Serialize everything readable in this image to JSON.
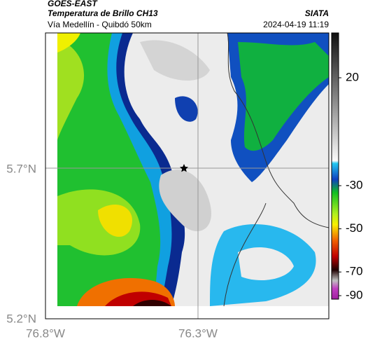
{
  "header": {
    "source": "GOES-EAST",
    "title": "Temperatura de Brillo CH13",
    "route": "Vía Medellín - Quibdó 50km",
    "org": "SIATA",
    "timestamp": "2024-04-19 11:19"
  },
  "map": {
    "lat_labels": [
      "5.7°N",
      "5.2°N"
    ],
    "lon_labels": [
      "76.8°W",
      "76.3°W"
    ]
  },
  "colorbar": {
    "ticks": [
      20,
      -30,
      -50,
      -70,
      -90
    ]
  }
}
